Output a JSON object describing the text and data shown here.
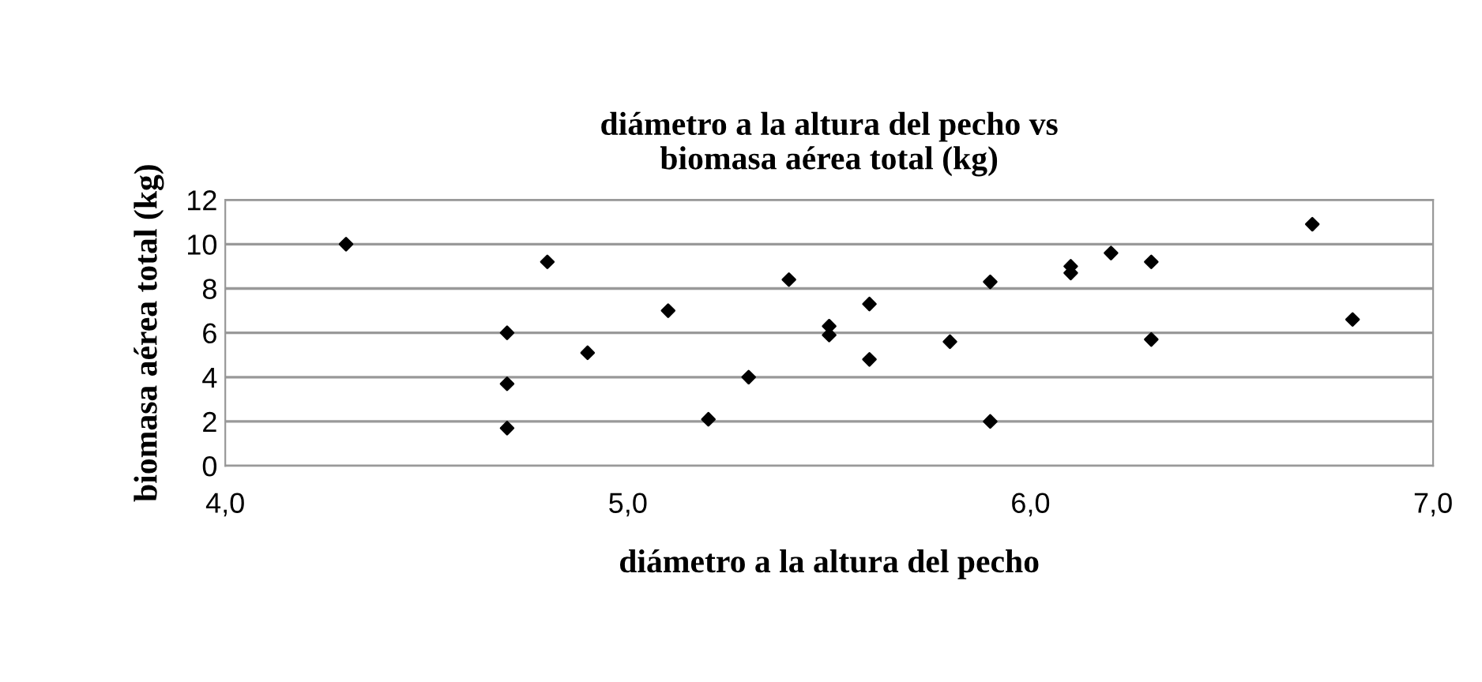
{
  "chart_data": {
    "type": "scatter",
    "title": "diámetro a la altura del pecho vs\nbiomasa aérea total (kg)",
    "xlabel": "diámetro a la altura del pecho",
    "ylabel": "biomasa aérea total (kg)",
    "x": [
      4.3,
      4.7,
      4.7,
      4.7,
      4.8,
      4.9,
      5.1,
      5.2,
      5.3,
      5.4,
      5.5,
      5.5,
      5.6,
      5.6,
      5.8,
      5.9,
      5.9,
      6.1,
      6.1,
      6.2,
      6.3,
      6.3,
      6.7,
      6.8
    ],
    "values": [
      10.0,
      6.0,
      3.7,
      1.7,
      9.2,
      5.1,
      7.0,
      2.1,
      4.0,
      8.4,
      6.3,
      5.9,
      7.3,
      4.8,
      5.6,
      8.3,
      2.0,
      9.0,
      8.7,
      9.6,
      9.2,
      5.7,
      10.9,
      6.6
    ],
    "color": "#000000",
    "marker": "diamond",
    "xlim": [
      4.0,
      7.0
    ],
    "xticks": [
      {
        "value": 4.0,
        "label": "4,0"
      },
      {
        "value": 5.0,
        "label": "5,0"
      },
      {
        "value": 6.0,
        "label": "6,0"
      },
      {
        "value": 7.0,
        "label": "7,0"
      }
    ],
    "ylim": [
      0,
      12
    ],
    "yticks": [
      0,
      2,
      4,
      6,
      8,
      10,
      12
    ],
    "grid": "y",
    "legend": false
  }
}
